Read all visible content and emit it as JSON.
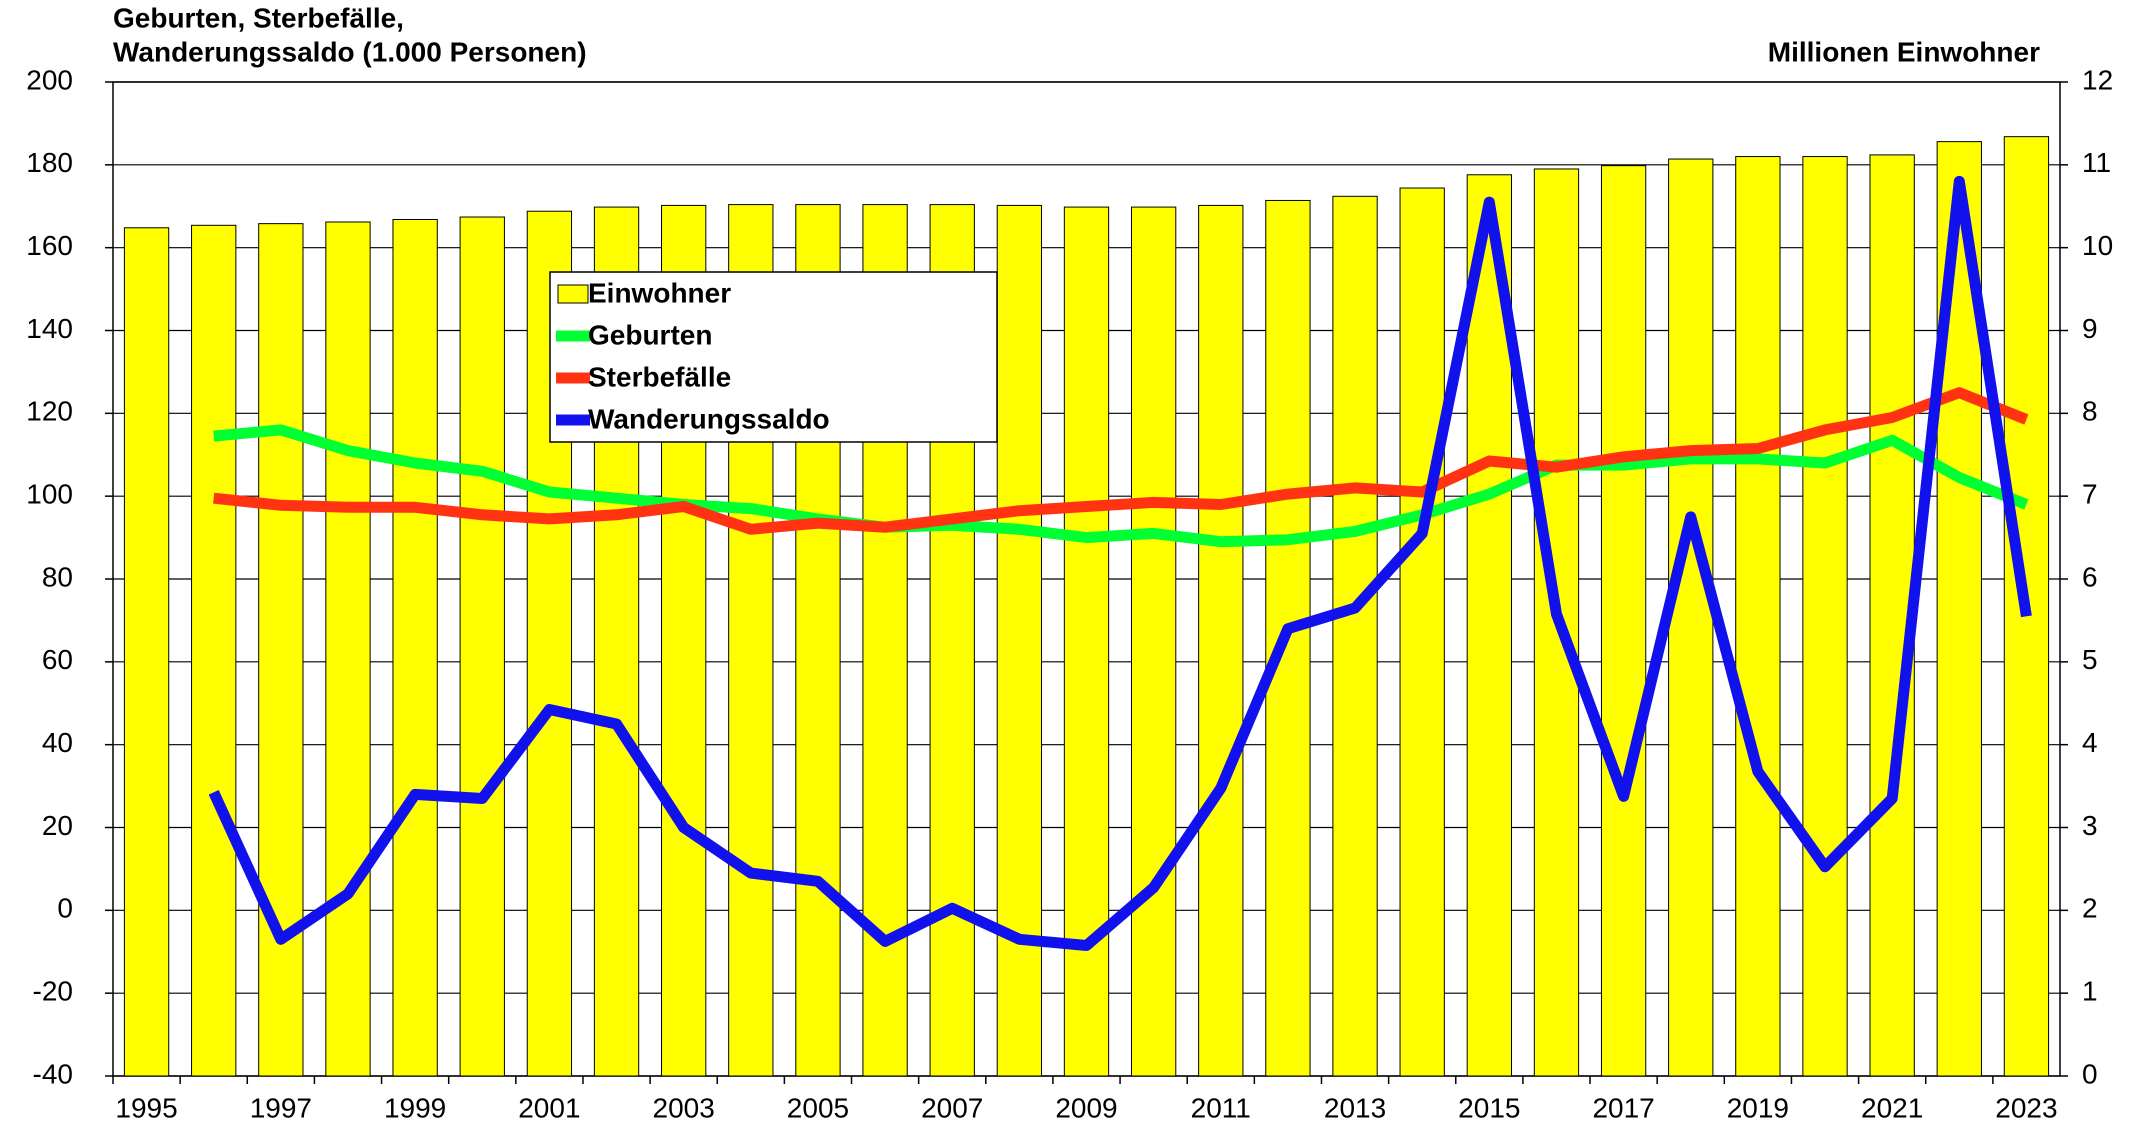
{
  "chart_data": {
    "type": "bar_line",
    "y_label": [
      "Geburten, Sterbefälle,",
      "Wanderungssaldo (1.000 Personen)"
    ],
    "y2_label": "Millionen Einwohner",
    "categories": [
      "1995",
      null,
      "1997",
      null,
      "1999",
      null,
      "2001",
      null,
      "2003",
      null,
      "2005",
      null,
      "2007",
      null,
      "2009",
      null,
      "2011",
      null,
      "2013",
      null,
      "2015",
      null,
      "2017",
      null,
      "2019",
      null,
      "2021",
      null,
      "2023"
    ],
    "series": [
      {
        "name": "Einwohner",
        "type": "bar",
        "axis": "y2",
        "color": "#ffff00",
        "values": [
          10.24,
          10.27,
          10.29,
          10.31,
          10.34,
          10.37,
          10.44,
          10.49,
          10.51,
          10.52,
          10.52,
          10.52,
          10.52,
          10.51,
          10.49,
          10.49,
          10.51,
          10.57,
          10.62,
          10.72,
          10.88,
          10.95,
          10.99,
          11.07,
          11.1,
          11.1,
          11.12,
          11.28,
          11.34
        ]
      },
      {
        "name": "Geburten",
        "type": "line",
        "axis": "y",
        "color": "#00ff33",
        "values": [
          null,
          114.5,
          116,
          111,
          108,
          106,
          101,
          99.5,
          98,
          97,
          94.5,
          92.5,
          93,
          92,
          90,
          91,
          89,
          89.5,
          91.5,
          95.5,
          100.5,
          107.5,
          107.5,
          109,
          109,
          108,
          113.5,
          104.5,
          98
        ]
      },
      {
        "name": "Sterbefälle",
        "type": "line",
        "axis": "y",
        "color": "#ff3311",
        "values": [
          null,
          99.5,
          97.8,
          97.3,
          97.3,
          95.5,
          94.5,
          95.5,
          97.5,
          92,
          93.5,
          92.5,
          94.5,
          96.5,
          97.5,
          98.5,
          98,
          100.5,
          102,
          101,
          108.5,
          107,
          109.5,
          111,
          111.5,
          116,
          119,
          125,
          118.5
        ]
      },
      {
        "name": "Wanderungssaldo",
        "type": "line",
        "axis": "y",
        "color": "#1111ee",
        "values": [
          null,
          28.5,
          -7,
          4,
          28,
          27,
          48.5,
          45,
          20,
          9,
          7,
          -7.5,
          0.5,
          -7,
          -8.5,
          5.5,
          29.5,
          68,
          73,
          91,
          171,
          71.5,
          27.5,
          95,
          33.5,
          10.5,
          27,
          176,
          71
        ]
      }
    ],
    "ylim": [
      -40,
      200
    ],
    "yticks": [
      -40,
      -20,
      0,
      20,
      40,
      60,
      80,
      100,
      120,
      140,
      160,
      180,
      200
    ],
    "y2lim": [
      0,
      12
    ],
    "y2ticks": [
      0,
      1,
      2,
      3,
      4,
      5,
      6,
      7,
      8,
      9,
      10,
      11,
      12
    ],
    "grid": true,
    "legend": "upper center"
  }
}
